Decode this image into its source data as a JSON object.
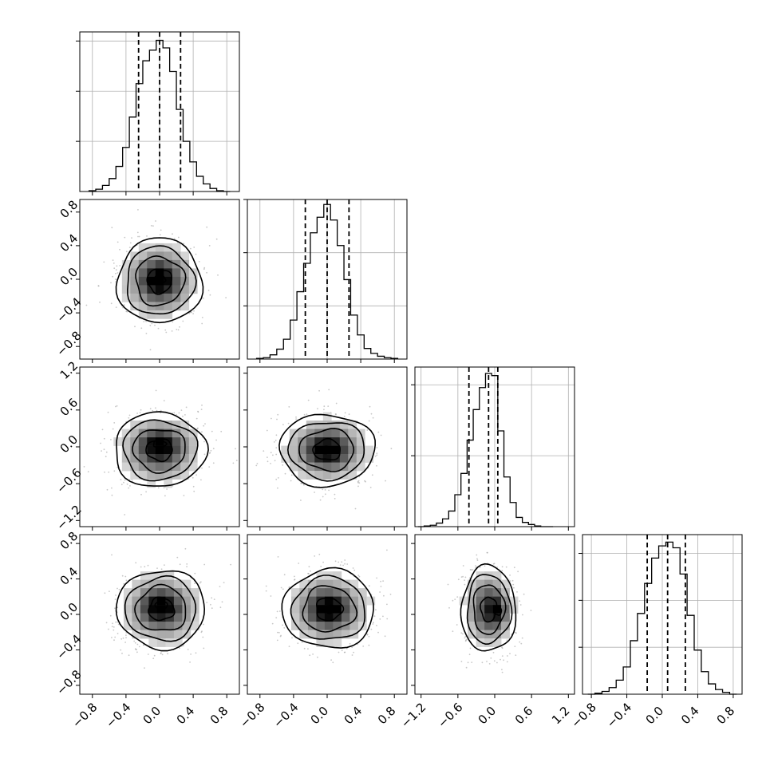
{
  "chart_data": {
    "type": "corner",
    "grid": true,
    "legend": "none",
    "variables": [
      {
        "range": [
          -0.95,
          0.95
        ],
        "ticks": [
          -0.8,
          -0.4,
          0.0,
          0.4,
          0.8
        ],
        "tick_labels": [
          "−0.8",
          "−0.4",
          "0.0",
          "0.4",
          "0.8"
        ],
        "quantiles": [
          -0.25,
          0.0,
          0.25
        ]
      },
      {
        "range": [
          -0.95,
          0.95
        ],
        "ticks": [
          -0.8,
          -0.4,
          0.0,
          0.4,
          0.8
        ],
        "tick_labels": [
          "−0.8",
          "−0.4",
          "0.0",
          "0.4",
          "0.8"
        ],
        "quantiles": [
          -0.26,
          0.0,
          0.26
        ]
      },
      {
        "range": [
          -1.3,
          1.3
        ],
        "ticks": [
          -1.2,
          -0.6,
          0.0,
          0.6,
          1.2
        ],
        "tick_labels": [
          "−1.2",
          "−0.6",
          "0.0",
          "0.6",
          "1.2"
        ],
        "quantiles": [
          -0.42,
          -0.1,
          0.05
        ]
      },
      {
        "range": [
          -0.9,
          0.9
        ],
        "ticks": [
          -0.8,
          -0.4,
          0.0,
          0.4,
          0.8
        ],
        "tick_labels": [
          "−0.8",
          "−0.4",
          "0.0",
          "0.4",
          "0.8"
        ],
        "quantiles": [
          -0.17,
          0.06,
          0.26
        ]
      }
    ],
    "histograms": [
      {
        "variable": 0,
        "bin_centers": [
          -0.8,
          -0.72,
          -0.64,
          -0.56,
          -0.48,
          -0.4,
          -0.32,
          -0.24,
          -0.16,
          -0.08,
          0.0,
          0.08,
          0.16,
          0.24,
          0.32,
          0.4,
          0.48,
          0.56,
          0.64,
          0.72,
          0.8
        ],
        "counts": [
          1,
          3,
          8,
          17,
          33,
          58,
          98,
          142,
          172,
          186,
          199,
          189,
          158,
          108,
          66,
          39,
          20,
          10,
          4,
          1,
          0
        ],
        "ymax": 210,
        "yticks": [
          66,
          132,
          198
        ]
      },
      {
        "variable": 1,
        "bin_centers": [
          -0.8,
          -0.72,
          -0.64,
          -0.56,
          -0.48,
          -0.4,
          -0.32,
          -0.24,
          -0.16,
          -0.08,
          0.0,
          0.08,
          0.16,
          0.24,
          0.32,
          0.4,
          0.48,
          0.56,
          0.64,
          0.72,
          0.8
        ],
        "counts": [
          1,
          2,
          6,
          14,
          28,
          55,
          95,
          135,
          178,
          200,
          218,
          196,
          160,
          112,
          62,
          34,
          15,
          8,
          4,
          2,
          1
        ],
        "ymax": 225,
        "yticks": [
          75,
          150,
          225
        ]
      },
      {
        "variable": 2,
        "bin_centers": [
          -1.2,
          -1.1,
          -1.0,
          -0.9,
          -0.8,
          -0.7,
          -0.6,
          -0.5,
          -0.4,
          -0.3,
          -0.2,
          -0.1,
          0.0,
          0.1,
          0.2,
          0.3,
          0.4,
          0.5,
          0.6,
          0.7,
          0.8,
          0.9
        ],
        "counts": [
          0,
          1,
          2,
          5,
          11,
          22,
          45,
          75,
          122,
          165,
          196,
          216,
          213,
          135,
          70,
          34,
          13,
          6,
          3,
          1,
          0,
          0
        ],
        "ymax": 225,
        "yticks": [
          100,
          200
        ]
      },
      {
        "variable": 3,
        "bin_centers": [
          -0.8,
          -0.72,
          -0.64,
          -0.56,
          -0.48,
          -0.4,
          -0.32,
          -0.24,
          -0.16,
          -0.08,
          0.0,
          0.08,
          0.16,
          0.24,
          0.32,
          0.4,
          0.48,
          0.56,
          0.64,
          0.72,
          0.8
        ],
        "counts": [
          0,
          1,
          3,
          7,
          15,
          29,
          57,
          86,
          118,
          145,
          158,
          162,
          156,
          128,
          84,
          47,
          24,
          11,
          5,
          2,
          0
        ],
        "ymax": 170,
        "yticks": [
          50,
          100,
          150
        ]
      }
    ],
    "pairs": [
      {
        "x": 0,
        "y": 1,
        "center": [
          0.0,
          -0.02
        ],
        "sigma": [
          0.25,
          0.25
        ],
        "levels": [
          0.08,
          0.2,
          0.3,
          0.44
        ],
        "peak": [
          0.0,
          0.0
        ]
      },
      {
        "x": 0,
        "y": 2,
        "center": [
          0.0,
          -0.05
        ],
        "sigma": [
          0.27,
          0.3
        ],
        "levels": [
          0.07,
          0.2,
          0.3,
          0.45
        ],
        "peak": [
          0.0,
          0.05
        ]
      },
      {
        "x": 1,
        "y": 2,
        "center": [
          0.0,
          -0.05
        ],
        "sigma": [
          0.28,
          0.29
        ],
        "levels": [
          0.08,
          0.2,
          0.3,
          0.45
        ],
        "peak": [
          0.0,
          -0.05
        ]
      },
      {
        "x": 0,
        "y": 3,
        "center": [
          0.02,
          0.06
        ],
        "sigma": [
          0.26,
          0.22
        ],
        "levels": [
          0.08,
          0.2,
          0.3,
          0.45
        ],
        "peak": [
          0.02,
          0.1
        ]
      },
      {
        "x": 1,
        "y": 3,
        "center": [
          0.02,
          0.06
        ],
        "sigma": [
          0.27,
          0.22
        ],
        "levels": [
          0.08,
          0.2,
          0.3,
          0.45
        ],
        "peak": [
          0.02,
          0.06
        ]
      },
      {
        "x": 2,
        "y": 3,
        "center": [
          -0.1,
          0.06
        ],
        "sigma": [
          0.22,
          0.24
        ],
        "levels": [
          0.08,
          0.2,
          0.3,
          0.45
        ],
        "peak": [
          0.05,
          0.04
        ]
      }
    ]
  }
}
